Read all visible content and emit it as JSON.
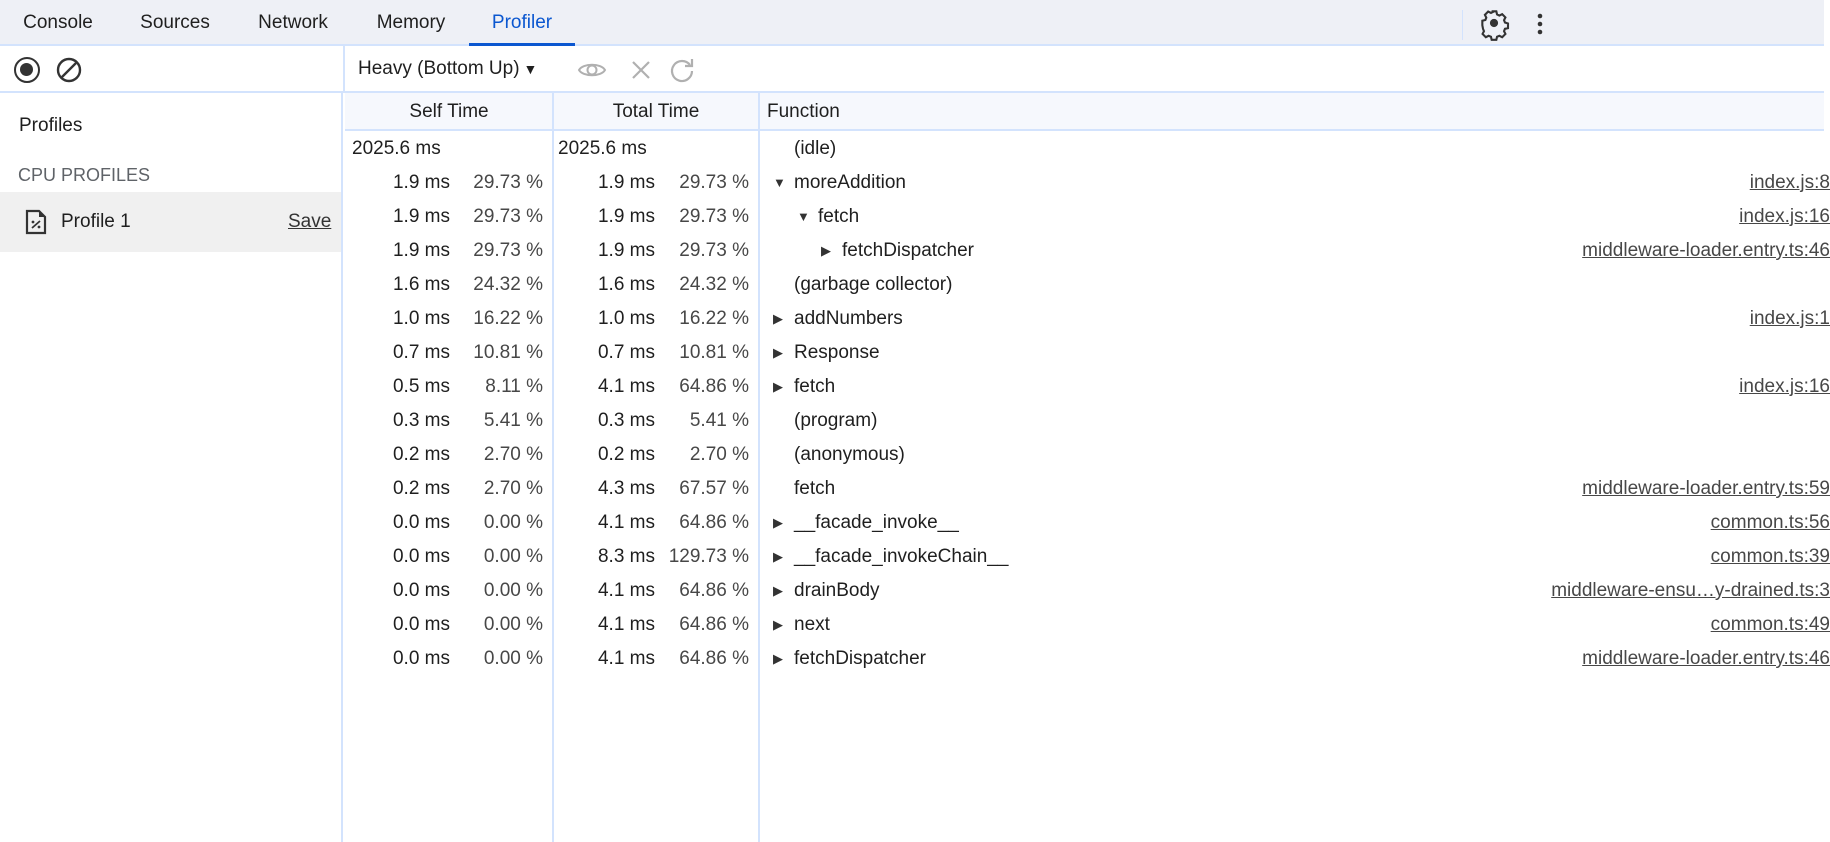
{
  "tabs": [
    {
      "label": "Console"
    },
    {
      "label": "Sources"
    },
    {
      "label": "Network"
    },
    {
      "label": "Memory"
    },
    {
      "label": "Profiler",
      "active": true
    }
  ],
  "colors": {
    "accent": "#0b57d0",
    "border": "#d3e3fd"
  },
  "toolbar": {
    "view_select": "Heavy (Bottom Up)",
    "icons": [
      "record-icon",
      "clear-icon",
      "focus-eye-icon",
      "exclude-x-icon",
      "restore-refresh-icon"
    ]
  },
  "sidebar": {
    "title": "Profiles",
    "section": "CPU PROFILES",
    "profile": {
      "name": "Profile 1",
      "save": "Save"
    }
  },
  "grid": {
    "headers": {
      "self": "Self Time",
      "total": "Total Time",
      "function": "Function"
    },
    "rows": [
      {
        "self": "2025.6 ms",
        "self_pct": "",
        "total": "2025.6 ms",
        "total_pct": "",
        "fn": "(idle)",
        "depth": 0,
        "arrow": "none",
        "url": ""
      },
      {
        "self": "1.9 ms",
        "self_pct": "29.73 %",
        "total": "1.9 ms",
        "total_pct": "29.73 %",
        "fn": "moreAddition",
        "depth": 0,
        "arrow": "down",
        "url": "index.js:8"
      },
      {
        "self": "1.9 ms",
        "self_pct": "29.73 %",
        "total": "1.9 ms",
        "total_pct": "29.73 %",
        "fn": "fetch",
        "depth": 1,
        "arrow": "down",
        "url": "index.js:16"
      },
      {
        "self": "1.9 ms",
        "self_pct": "29.73 %",
        "total": "1.9 ms",
        "total_pct": "29.73 %",
        "fn": "fetchDispatcher",
        "depth": 2,
        "arrow": "right",
        "url": "middleware-loader.entry.ts:46"
      },
      {
        "self": "1.6 ms",
        "self_pct": "24.32 %",
        "total": "1.6 ms",
        "total_pct": "24.32 %",
        "fn": "(garbage collector)",
        "depth": 0,
        "arrow": "none",
        "url": ""
      },
      {
        "self": "1.0 ms",
        "self_pct": "16.22 %",
        "total": "1.0 ms",
        "total_pct": "16.22 %",
        "fn": "addNumbers",
        "depth": 0,
        "arrow": "right",
        "url": "index.js:1"
      },
      {
        "self": "0.7 ms",
        "self_pct": "10.81 %",
        "total": "0.7 ms",
        "total_pct": "10.81 %",
        "fn": "Response",
        "depth": 0,
        "arrow": "right",
        "url": ""
      },
      {
        "self": "0.5 ms",
        "self_pct": "8.11 %",
        "total": "4.1 ms",
        "total_pct": "64.86 %",
        "fn": "fetch",
        "depth": 0,
        "arrow": "right",
        "url": "index.js:16"
      },
      {
        "self": "0.3 ms",
        "self_pct": "5.41 %",
        "total": "0.3 ms",
        "total_pct": "5.41 %",
        "fn": "(program)",
        "depth": 0,
        "arrow": "none",
        "url": ""
      },
      {
        "self": "0.2 ms",
        "self_pct": "2.70 %",
        "total": "0.2 ms",
        "total_pct": "2.70 %",
        "fn": "(anonymous)",
        "depth": 0,
        "arrow": "none",
        "url": ""
      },
      {
        "self": "0.2 ms",
        "self_pct": "2.70 %",
        "total": "4.3 ms",
        "total_pct": "67.57 %",
        "fn": "fetch",
        "depth": 0,
        "arrow": "none",
        "url": "middleware-loader.entry.ts:59"
      },
      {
        "self": "0.0 ms",
        "self_pct": "0.00 %",
        "total": "4.1 ms",
        "total_pct": "64.86 %",
        "fn": "__facade_invoke__",
        "depth": 0,
        "arrow": "right",
        "url": "common.ts:56"
      },
      {
        "self": "0.0 ms",
        "self_pct": "0.00 %",
        "total": "8.3 ms",
        "total_pct": "129.73 %",
        "fn": "__facade_invokeChain__",
        "depth": 0,
        "arrow": "right",
        "url": "common.ts:39"
      },
      {
        "self": "0.0 ms",
        "self_pct": "0.00 %",
        "total": "4.1 ms",
        "total_pct": "64.86 %",
        "fn": "drainBody",
        "depth": 0,
        "arrow": "right",
        "url": "middleware-ensu…y-drained.ts:3"
      },
      {
        "self": "0.0 ms",
        "self_pct": "0.00 %",
        "total": "4.1 ms",
        "total_pct": "64.86 %",
        "fn": "next",
        "depth": 0,
        "arrow": "right",
        "url": "common.ts:49"
      },
      {
        "self": "0.0 ms",
        "self_pct": "0.00 %",
        "total": "4.1 ms",
        "total_pct": "64.86 %",
        "fn": "fetchDispatcher",
        "depth": 0,
        "arrow": "right",
        "url": "middleware-loader.entry.ts:46"
      }
    ]
  }
}
